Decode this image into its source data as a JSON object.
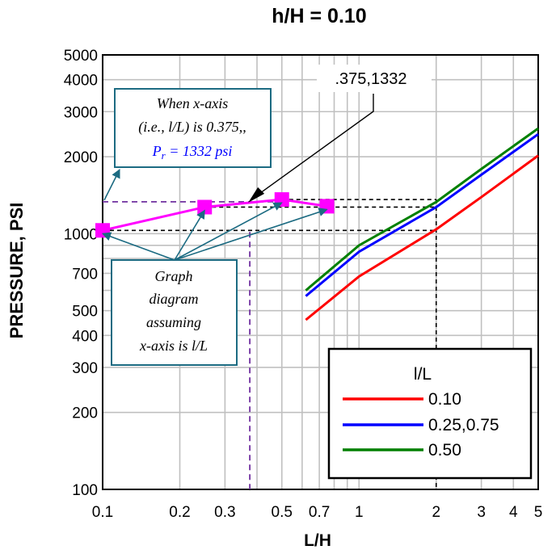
{
  "chart_data": {
    "type": "line",
    "title": "h/H = 0.10",
    "xlabel": "L/H",
    "ylabel": "PRESSURE, PSI",
    "x_scale": "log",
    "y_scale": "log",
    "xlim": [
      0.1,
      5
    ],
    "ylim": [
      100,
      5000
    ],
    "grid": true,
    "x_ticks": [
      {
        "value": 0.1,
        "label": "0.1"
      },
      {
        "value": 0.2,
        "label": "0.2"
      },
      {
        "value": 0.3,
        "label": "0.3"
      },
      {
        "value": 0.5,
        "label": "0.5"
      },
      {
        "value": 0.7,
        "label": "0.7"
      },
      {
        "value": 1,
        "label": "1"
      },
      {
        "value": 2,
        "label": "2"
      },
      {
        "value": 3,
        "label": "3"
      },
      {
        "value": 4,
        "label": "4"
      },
      {
        "value": 5,
        "label": "5"
      }
    ],
    "y_ticks": [
      {
        "value": 100,
        "label": "100"
      },
      {
        "value": 200,
        "label": "200"
      },
      {
        "value": 300,
        "label": "300"
      },
      {
        "value": 400,
        "label": "400"
      },
      {
        "value": 500,
        "label": "500"
      },
      {
        "value": 700,
        "label": "700"
      },
      {
        "value": 1000,
        "label": "1000"
      },
      {
        "value": 2000,
        "label": "2000"
      },
      {
        "value": 3000,
        "label": "3000"
      },
      {
        "value": 4000,
        "label": "4000"
      },
      {
        "value": 5000,
        "label": "5000"
      }
    ],
    "legend": {
      "title": "l/L",
      "placement": "bottom-right"
    },
    "series": [
      {
        "name": "0.10",
        "color": "#ff0000",
        "x": [
          0.62,
          1,
          2,
          3,
          5
        ],
        "y": [
          460,
          680,
          1040,
          1390,
          2020
        ]
      },
      {
        "name": "0.25,0.75",
        "color": "#0000ff",
        "x": [
          0.62,
          1,
          2,
          3,
          5
        ],
        "y": [
          570,
          850,
          1270,
          1700,
          2450
        ]
      },
      {
        "name": "0.50",
        "color": "#008000",
        "x": [
          0.62,
          1,
          2,
          3,
          5
        ],
        "y": [
          600,
          900,
          1330,
          1790,
          2580
        ]
      }
    ],
    "overlay": {
      "color": "#ff00ff",
      "points": [
        {
          "x": 0.1,
          "y": 1030
        },
        {
          "x": 0.25,
          "y": 1270
        },
        {
          "x": 0.5,
          "y": 1360
        },
        {
          "x": 0.75,
          "y": 1280
        }
      ],
      "marked_point": {
        "x": 0.375,
        "y": 1332
      }
    },
    "callout_label": ".375,1332",
    "note_box": {
      "line1": "When x-axis",
      "line2": "(i.e., l/L) is 0.375,,",
      "line3_symbol": "P",
      "line3_sub": "r",
      "line3_rest": " = 1332 psi"
    },
    "graph_note": {
      "lines": [
        "Graph",
        "diagram",
        "assuming",
        "x-axis is l/L"
      ]
    }
  }
}
